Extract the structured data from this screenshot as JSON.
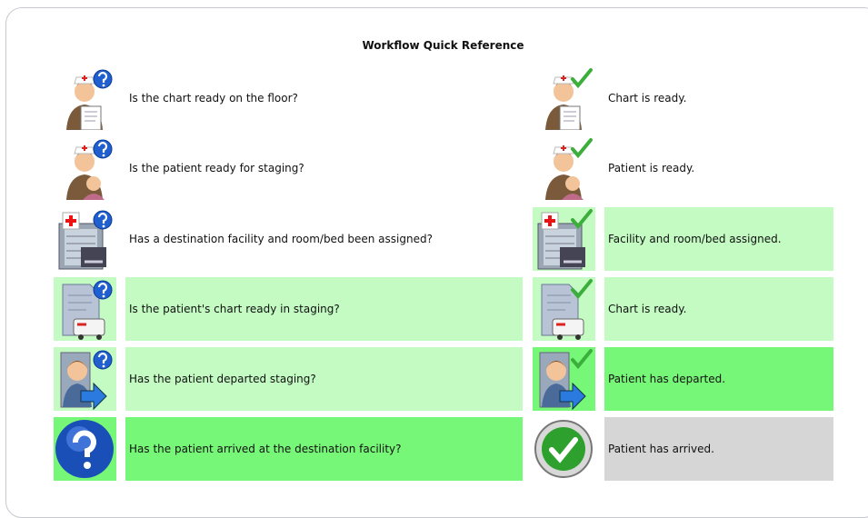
{
  "title": "Workflow Quick Reference",
  "rows": [
    {
      "question": "Is the chart ready on the floor?",
      "status": "Chart is ready."
    },
    {
      "question": "Is the patient ready for staging?",
      "status": "Patient is ready."
    },
    {
      "question": "Has a destination facility and room/bed been assigned?",
      "status": "Facility and room/bed assigned."
    },
    {
      "question": "Is the patient's chart ready in staging?",
      "status": "Chart is ready."
    },
    {
      "question": "Has the patient departed staging?",
      "status": "Patient has departed."
    },
    {
      "question": "Has the patient arrived at the destination facility?",
      "status": "Patient has arrived."
    }
  ]
}
